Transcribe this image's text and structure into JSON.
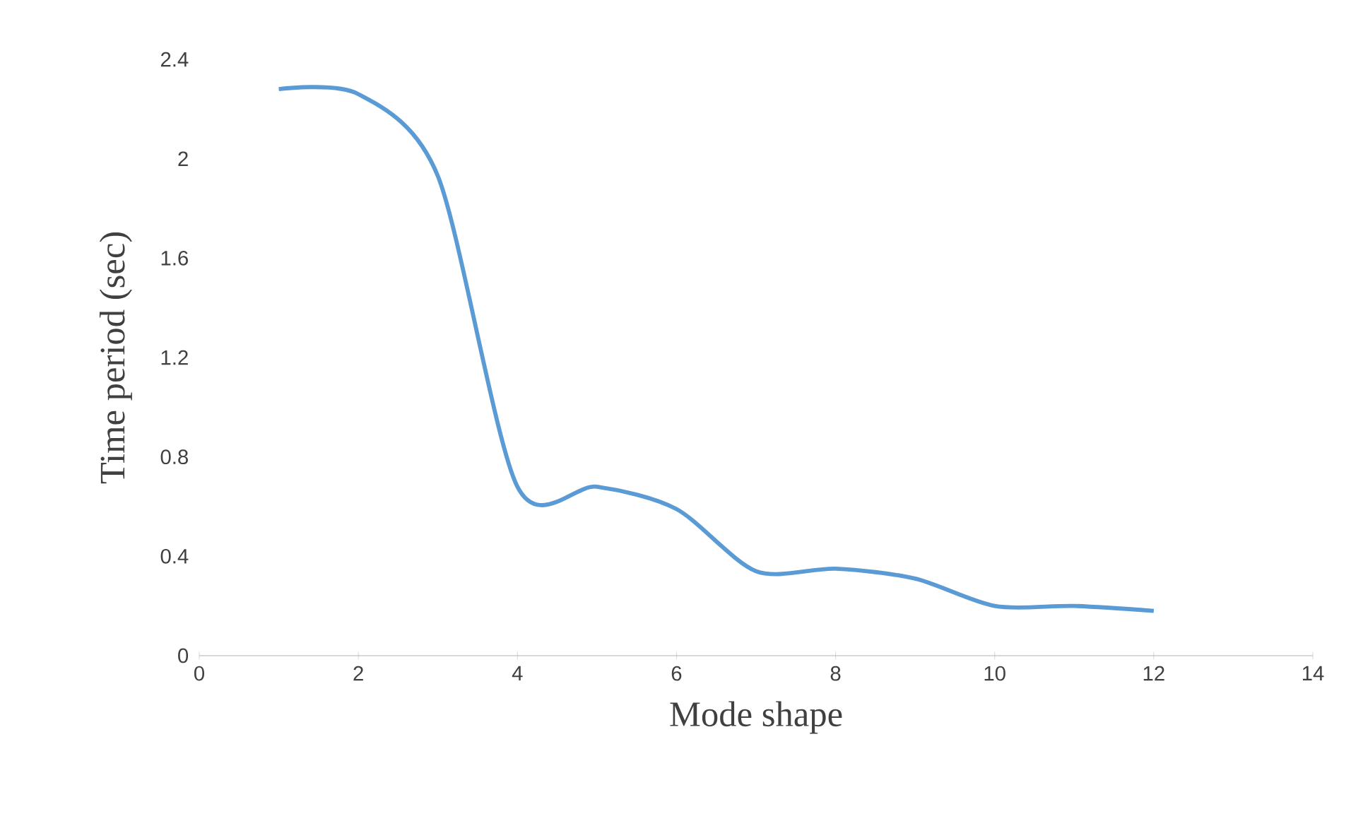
{
  "chart_data": {
    "type": "line",
    "xlabel": "Mode shape",
    "ylabel": "Time period (sec)",
    "x": [
      1,
      2,
      3,
      4,
      5,
      6,
      7,
      8,
      9,
      10,
      11,
      12
    ],
    "series": [
      {
        "color": "#5b9bd5",
        "values": [
          2.28,
          2.26,
          1.93,
          0.68,
          0.68,
          0.59,
          0.34,
          0.35,
          0.31,
          0.2,
          0.2,
          0.18
        ]
      }
    ],
    "xlim": [
      0,
      14
    ],
    "xticks": [
      0,
      2,
      4,
      6,
      8,
      10,
      12,
      14
    ],
    "ylim": [
      0,
      2.4
    ],
    "yticks": [
      0,
      0.4,
      0.8,
      1.2,
      1.6,
      2,
      2.4
    ],
    "grid": false,
    "marker": "none",
    "line_style": "solid"
  }
}
